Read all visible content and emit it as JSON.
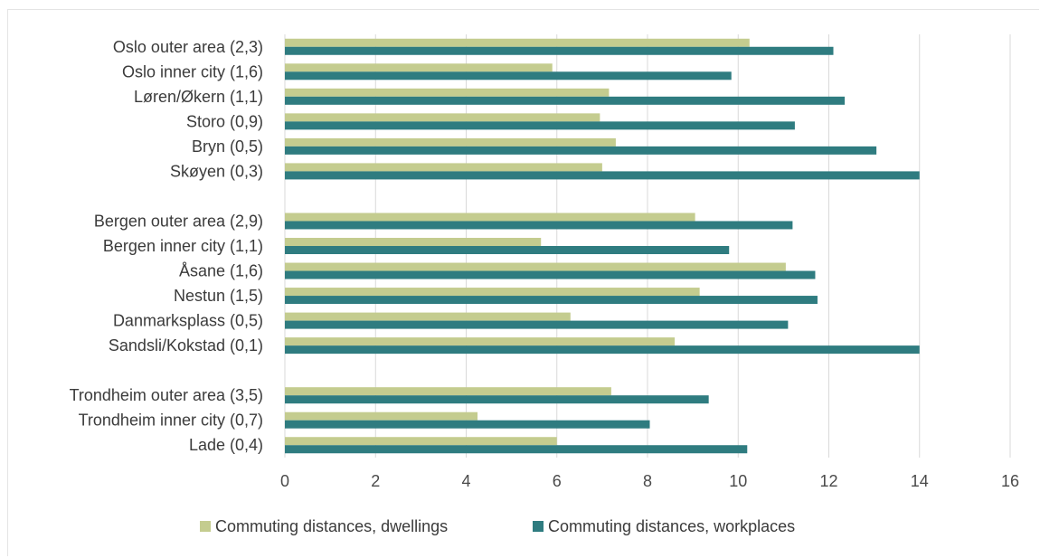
{
  "chart_data": {
    "type": "bar",
    "orientation": "horizontal",
    "categories": [
      "Oslo outer area (2,3)",
      "Oslo inner city (1,6)",
      "Løren/Økern (1,1)",
      "Storo (0,9)",
      "Bryn (0,5)",
      "Skøyen (0,3)",
      "",
      "Bergen outer area (2,9)",
      "Bergen inner city (1,1)",
      "Åsane (1,6)",
      "Nestun (1,5)",
      "Danmarksplass (0,5)",
      "Sandsli/Kokstad (0,1)",
      "",
      "Trondheim outer area (3,5)",
      "Trondheim inner city (0,7)",
      "Lade (0,4)"
    ],
    "series": [
      {
        "name": "Commuting distances, dwellings",
        "color": "#c4cc8f",
        "values": [
          10.25,
          5.9,
          7.15,
          6.95,
          7.3,
          7.0,
          null,
          9.05,
          5.65,
          11.05,
          9.15,
          6.3,
          8.6,
          null,
          7.2,
          4.25,
          6.0
        ]
      },
      {
        "name": "Commuting distances, workplaces",
        "color": "#2f7c80",
        "values": [
          12.1,
          9.85,
          12.35,
          11.25,
          13.05,
          14.0,
          null,
          11.2,
          9.8,
          11.7,
          11.75,
          11.1,
          14.0,
          null,
          9.35,
          8.05,
          10.2
        ]
      }
    ],
    "xlim": [
      0,
      16
    ],
    "xticks": [
      "0",
      "2",
      "4",
      "6",
      "8",
      "10",
      "12",
      "14",
      "16"
    ],
    "grid": true,
    "legend_position": "bottom",
    "title": "",
    "xlabel": "",
    "ylabel": ""
  }
}
